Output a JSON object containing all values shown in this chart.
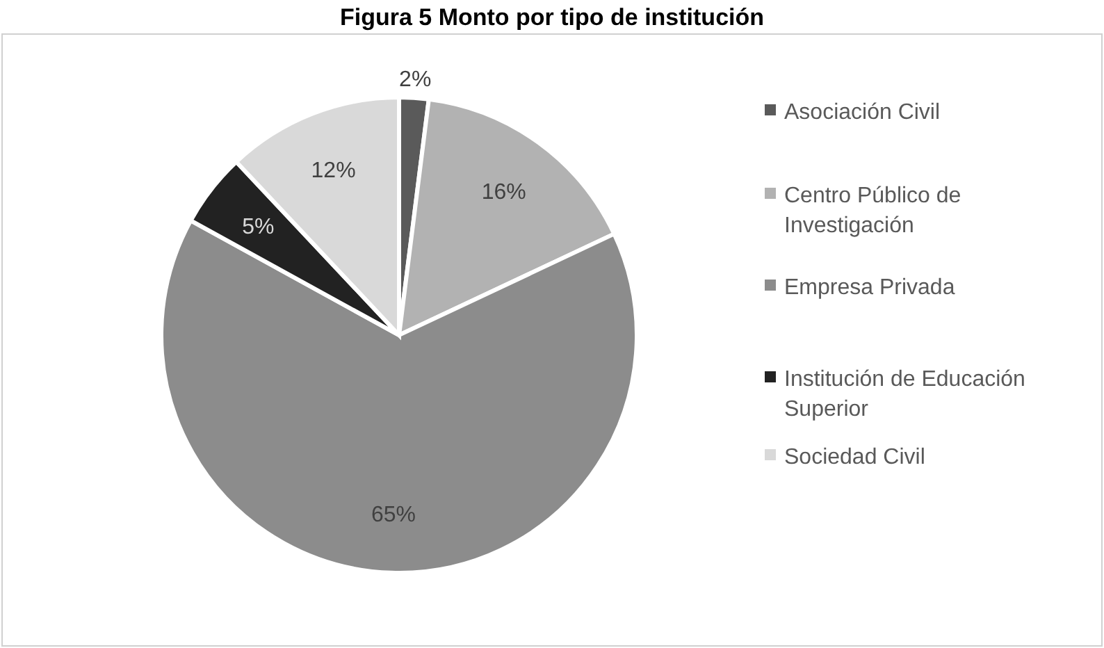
{
  "chart_data": {
    "type": "pie",
    "title": "Figura 5 Monto por tipo de institución",
    "categories": [
      "Asociación Civil",
      "Centro Público de Investigación",
      "Empresa Privada",
      "Institución de Educación Superior",
      "Sociedad Civil"
    ],
    "values": [
      2,
      16,
      65,
      5,
      12
    ],
    "colors": [
      "#5a5a5a",
      "#b2b2b2",
      "#8c8c8c",
      "#222222",
      "#d9d9d9"
    ],
    "value_labels": [
      "2%",
      "16%",
      "65%",
      "5%",
      "12%"
    ],
    "legend": "right"
  }
}
